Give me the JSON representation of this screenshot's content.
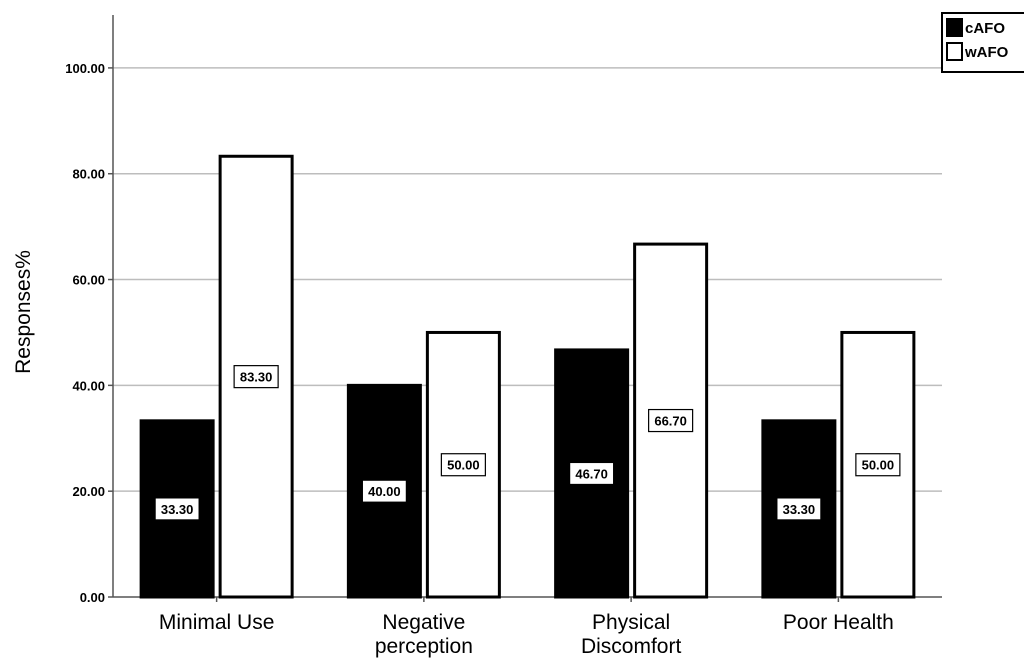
{
  "chart_data": {
    "type": "bar",
    "categories": [
      "Minimal Use",
      "Negative perception",
      "Physical Discomfort",
      "Poor Health"
    ],
    "category_lines": [
      [
        "Minimal Use"
      ],
      [
        "Negative",
        "perception"
      ],
      [
        "Physical",
        "Discomfort"
      ],
      [
        "Poor Health"
      ]
    ],
    "series": [
      {
        "name": "cAFO",
        "values": [
          33.3,
          40.0,
          46.7,
          33.3
        ],
        "labels": [
          "33.30",
          "40.00",
          "46.70",
          "33.30"
        ],
        "color": "#000000"
      },
      {
        "name": "wAFO",
        "values": [
          83.3,
          50.0,
          66.7,
          50.0
        ],
        "labels": [
          "83.30",
          "50.00",
          "66.70",
          "50.00"
        ],
        "color": "#ffffff"
      }
    ],
    "ylabel": "Responses%",
    "xlabel": "",
    "ylim": [
      0,
      110
    ],
    "yticks": [
      "0.00",
      "20.00",
      "40.00",
      "60.00",
      "80.00",
      "100.00"
    ],
    "grid": true,
    "legend_position": "top-right"
  }
}
